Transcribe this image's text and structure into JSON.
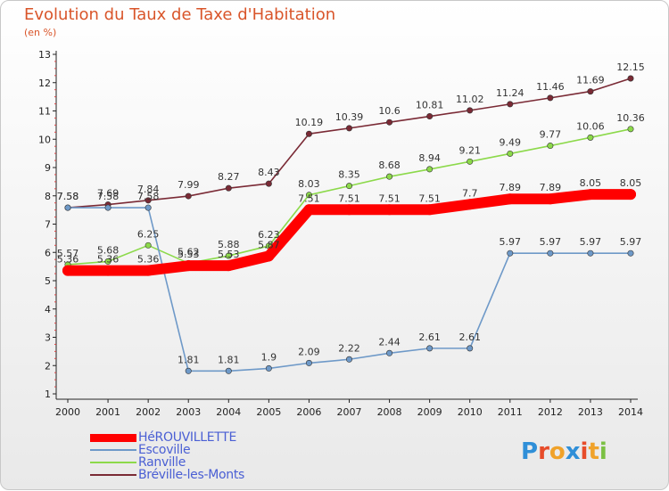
{
  "header": {
    "title": "Evolution du Taux de Taxe d'Habitation",
    "unit": "(en %)"
  },
  "chart_data": {
    "type": "line",
    "title": "Evolution du Taux de Taxe d'Habitation",
    "ylabel": "(en %)",
    "x": [
      "2000",
      "2001",
      "2002",
      "2003",
      "2004",
      "2005",
      "2006",
      "2007",
      "2008",
      "2009",
      "2010",
      "2011",
      "2012",
      "2013",
      "2014"
    ],
    "ylim": [
      1,
      13
    ],
    "yticks": [
      1,
      2,
      3,
      4,
      5,
      6,
      7,
      8,
      9,
      10,
      11,
      12,
      13
    ],
    "grid": false,
    "legend_position": "bottom-left",
    "series": [
      {
        "name": "HéROUVILLETTE",
        "color": "#ff0000",
        "values": [
          5.36,
          5.36,
          5.36,
          5.53,
          5.53,
          5.87,
          7.51,
          7.51,
          7.51,
          7.51,
          7.7,
          7.89,
          7.89,
          8.05,
          8.05
        ],
        "labels": [
          "5.36",
          "5.36",
          "5.36",
          "5.53",
          "5.53",
          "5.87",
          "7.51",
          "7.51",
          "7.51",
          "7.51",
          "7.7",
          "7.89",
          "7.89",
          "8.05",
          "8.05"
        ]
      },
      {
        "name": "Escoville",
        "color": "#6e99c8",
        "values": [
          7.58,
          7.58,
          7.58,
          1.81,
          1.81,
          1.9,
          2.09,
          2.22,
          2.44,
          2.61,
          2.61,
          5.97,
          5.97,
          5.97,
          5.97
        ],
        "labels": [
          "7.58",
          "7.58",
          "7.58",
          "1.81",
          "1.81",
          "1.9",
          "2.09",
          "2.22",
          "2.44",
          "2.61",
          "2.61",
          "5.97",
          "5.97",
          "5.97",
          "5.97"
        ]
      },
      {
        "name": "Ranville",
        "color": "#8cd94a",
        "values": [
          5.57,
          5.68,
          6.25,
          5.62,
          5.88,
          6.23,
          8.03,
          8.35,
          8.68,
          8.94,
          9.21,
          9.49,
          9.77,
          10.06,
          10.36
        ],
        "labels": [
          "5.57",
          "5.68",
          "6.25",
          "5.62",
          "5.88",
          "6.23",
          "8.03",
          "8.35",
          "8.68",
          "8.94",
          "9.21",
          "9.49",
          "9.77",
          "10.06",
          "10.36"
        ]
      },
      {
        "name": "Bréville-les-Monts",
        "color": "#7a2a35",
        "values": [
          7.58,
          7.69,
          7.84,
          7.99,
          8.27,
          8.43,
          10.19,
          10.39,
          10.6,
          10.81,
          11.02,
          11.24,
          11.46,
          11.69,
          12.15
        ],
        "labels": [
          "7.58",
          "7.69",
          "7.84",
          "7.99",
          "8.27",
          "8.43",
          "10.19",
          "10.39",
          "10.6",
          "10.81",
          "11.02",
          "11.24",
          "11.46",
          "11.69",
          "12.15"
        ]
      }
    ]
  },
  "legend": {
    "items": [
      "HéROUVILLETTE",
      "Escoville",
      "Ranville",
      "Bréville-les-Monts"
    ]
  },
  "logo": {
    "text": "Proxiti",
    "letter_colors": [
      "#2f8fd8",
      "#e74c2a",
      "#f0a22a",
      "#2f8fd8",
      "#e74c2a",
      "#f0a22a",
      "#7bc043"
    ]
  }
}
